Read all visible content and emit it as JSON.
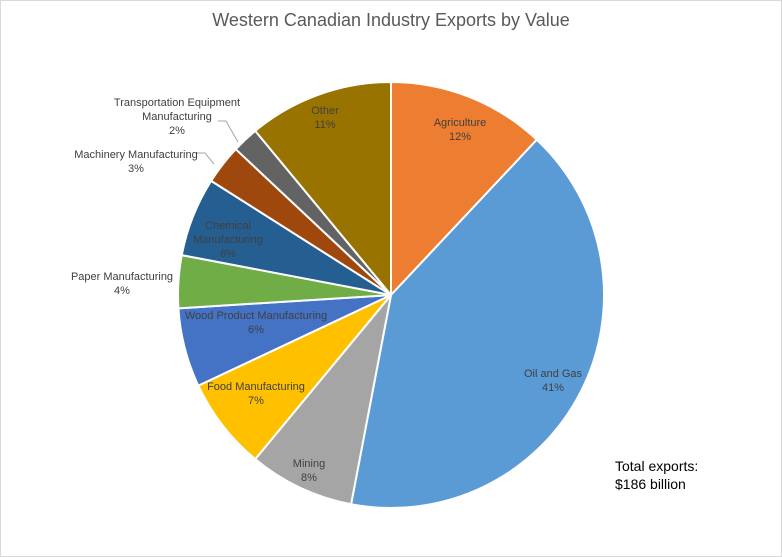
{
  "chart_data": {
    "type": "pie",
    "title": "Western Canadian Industry Exports by Value",
    "slices": [
      {
        "name": "Agriculture",
        "value": 12,
        "pct_label": "12%",
        "color": "#ED7D31",
        "label_color": "#404040"
      },
      {
        "name": "Oil and Gas",
        "value": 41,
        "pct_label": "41%",
        "color": "#5B9BD5",
        "label_color": "#404040"
      },
      {
        "name": "Mining",
        "value": 8,
        "pct_label": "8%",
        "color": "#A5A5A5",
        "label_color": "#404040"
      },
      {
        "name": "Food Manufacturing",
        "value": 7,
        "pct_label": "7%",
        "color": "#FFC000",
        "label_color": "#404040"
      },
      {
        "name": "Wood Product Manufacturing",
        "value": 6,
        "pct_label": "6%",
        "color": "#4472C4",
        "label_color": "#404040"
      },
      {
        "name": "Paper Manufacturing",
        "value": 4,
        "pct_label": "4%",
        "color": "#70AD47",
        "label_color": "#404040"
      },
      {
        "name": "Chemical Manufacturing",
        "value": 6,
        "pct_label": "6%",
        "color": "#255E91",
        "label_color": "#404040"
      },
      {
        "name": "Machinery Manufacturing",
        "value": 3,
        "pct_label": "3%",
        "color": "#9E480E",
        "label_color": "#404040"
      },
      {
        "name": "Transportation Equipment Manufacturing",
        "value": 2,
        "pct_label": "2%",
        "color": "#636363",
        "label_color": "#404040"
      },
      {
        "name": "Other",
        "value": 11,
        "pct_label": "11%",
        "color": "#997300",
        "label_color": "#404040"
      }
    ],
    "note": {
      "line1": "Total exports:",
      "line2": "$186 billion"
    }
  }
}
